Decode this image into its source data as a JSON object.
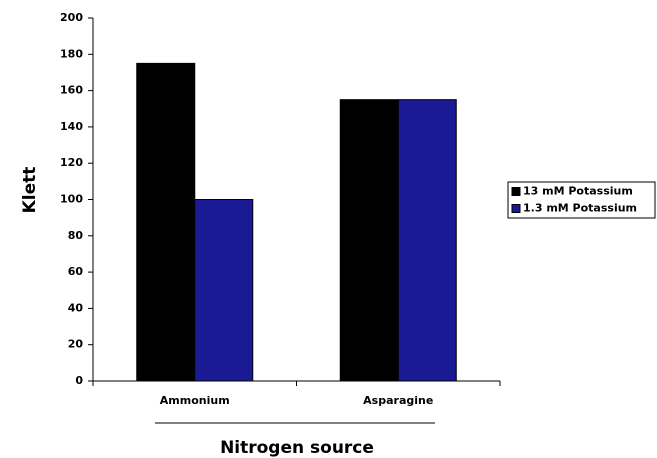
{
  "chart_data": {
    "type": "bar",
    "categories": [
      "Ammonium",
      "Asparagine"
    ],
    "series": [
      {
        "name": "13 mM Potassium",
        "color": "#000000",
        "values": [
          175,
          155
        ]
      },
      {
        "name": "1.3 mM Potassium",
        "color": "#1a1a94",
        "values": [
          100,
          155
        ]
      }
    ],
    "ylim": [
      0,
      200
    ],
    "yticks": [
      0,
      20,
      40,
      60,
      80,
      100,
      120,
      140,
      160,
      180,
      200
    ],
    "xlabel": "Nitrogen source",
    "ylabel": "Klett",
    "legend": "right"
  }
}
